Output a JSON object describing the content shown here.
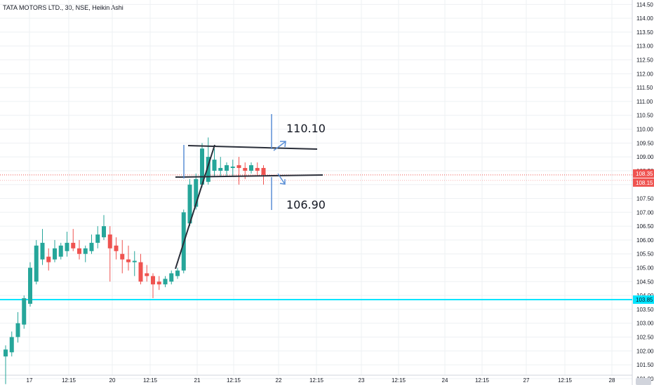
{
  "header": {
    "title": "TATA MOTORS LTD., 30, NSE, Heikin Ashi"
  },
  "colors": {
    "up": "#26a69a",
    "down": "#ef5350",
    "cyan_line": "#00e5ff",
    "annotation_blue": "#5b8fd6",
    "trendline": "#2a2e39",
    "grid": "#eef0f3",
    "axis_text": "#131722"
  },
  "chart_data": {
    "type": "candlestick",
    "style": "Heikin Ashi",
    "symbol": "TATA MOTORS LTD.",
    "interval": "30",
    "exchange": "NSE",
    "ylim": [
      100.77,
      114.66
    ],
    "y_ticks": [
      "101.00",
      "101.50",
      "102.00",
      "102.50",
      "103.00",
      "103.50",
      "104.00",
      "104.50",
      "105.00",
      "105.50",
      "106.00",
      "106.50",
      "107.00",
      "107.50",
      "108.00",
      "108.50",
      "109.00",
      "109.50",
      "110.00",
      "110.50",
      "111.00",
      "111.50",
      "112.00",
      "112.50",
      "113.00",
      "113.50",
      "114.00",
      "114.50"
    ],
    "x_ticks": [
      "17",
      "12:15",
      "20",
      "12:15",
      "21",
      "12:15",
      "22",
      "12:15",
      "23",
      "12:15",
      "24",
      "12:15",
      "27",
      "12:15",
      "28"
    ],
    "candles": [
      {
        "o": 101.8,
        "h": 102.2,
        "l": 100.8,
        "c": 102.05
      },
      {
        "o": 101.95,
        "h": 102.7,
        "l": 101.8,
        "c": 102.5
      },
      {
        "o": 102.5,
        "h": 103.4,
        "l": 102.3,
        "c": 103.0
      },
      {
        "o": 102.95,
        "h": 104.0,
        "l": 102.8,
        "c": 103.9
      },
      {
        "o": 103.7,
        "h": 105.2,
        "l": 103.6,
        "c": 105.0
      },
      {
        "o": 104.5,
        "h": 106.0,
        "l": 104.4,
        "c": 105.8
      },
      {
        "o": 105.3,
        "h": 106.4,
        "l": 105.1,
        "c": 105.9
      },
      {
        "o": 105.4,
        "h": 105.7,
        "l": 104.9,
        "c": 105.2
      },
      {
        "o": 105.3,
        "h": 106.0,
        "l": 105.2,
        "c": 105.7
      },
      {
        "o": 105.4,
        "h": 105.9,
        "l": 105.3,
        "c": 105.8
      },
      {
        "o": 105.6,
        "h": 106.3,
        "l": 105.4,
        "c": 105.9
      },
      {
        "o": 105.9,
        "h": 106.4,
        "l": 105.6,
        "c": 105.7
      },
      {
        "o": 105.7,
        "h": 106.0,
        "l": 105.3,
        "c": 105.5
      },
      {
        "o": 105.5,
        "h": 105.8,
        "l": 105.2,
        "c": 105.7
      },
      {
        "o": 105.6,
        "h": 106.2,
        "l": 105.5,
        "c": 105.9
      },
      {
        "o": 105.9,
        "h": 106.5,
        "l": 105.7,
        "c": 106.2
      },
      {
        "o": 106.1,
        "h": 106.9,
        "l": 106.0,
        "c": 106.5
      },
      {
        "o": 106.2,
        "h": 106.5,
        "l": 104.5,
        "c": 105.7
      },
      {
        "o": 105.8,
        "h": 106.1,
        "l": 105.3,
        "c": 105.6
      },
      {
        "o": 105.5,
        "h": 106.0,
        "l": 104.8,
        "c": 105.3
      },
      {
        "o": 105.3,
        "h": 105.8,
        "l": 104.9,
        "c": 105.2
      },
      {
        "o": 105.2,
        "h": 105.6,
        "l": 104.7,
        "c": 105.25
      },
      {
        "o": 105.2,
        "h": 105.5,
        "l": 104.4,
        "c": 104.5
      },
      {
        "o": 104.8,
        "h": 105.1,
        "l": 104.5,
        "c": 104.7
      },
      {
        "o": 104.7,
        "h": 104.8,
        "l": 103.9,
        "c": 104.4
      },
      {
        "o": 104.5,
        "h": 104.7,
        "l": 104.2,
        "c": 104.4
      },
      {
        "o": 104.4,
        "h": 104.7,
        "l": 104.3,
        "c": 104.6
      },
      {
        "o": 104.5,
        "h": 104.9,
        "l": 104.4,
        "c": 104.8
      },
      {
        "o": 104.7,
        "h": 105.0,
        "l": 104.6,
        "c": 104.9
      },
      {
        "o": 104.9,
        "h": 107.1,
        "l": 104.8,
        "c": 107.0
      },
      {
        "o": 106.6,
        "h": 108.2,
        "l": 106.5,
        "c": 108.0
      },
      {
        "o": 107.2,
        "h": 108.4,
        "l": 107.1,
        "c": 108.2
      },
      {
        "o": 108.0,
        "h": 109.5,
        "l": 107.9,
        "c": 109.3
      },
      {
        "o": 108.1,
        "h": 109.7,
        "l": 108.0,
        "c": 109.0
      },
      {
        "o": 108.5,
        "h": 109.3,
        "l": 108.3,
        "c": 108.9
      },
      {
        "o": 108.5,
        "h": 109.0,
        "l": 108.3,
        "c": 108.6
      },
      {
        "o": 108.5,
        "h": 108.8,
        "l": 108.3,
        "c": 108.7
      },
      {
        "o": 108.6,
        "h": 108.9,
        "l": 108.3,
        "c": 108.65
      },
      {
        "o": 108.7,
        "h": 109.0,
        "l": 108.0,
        "c": 108.6
      },
      {
        "o": 108.6,
        "h": 108.8,
        "l": 108.2,
        "c": 108.5
      },
      {
        "o": 108.5,
        "h": 108.8,
        "l": 108.4,
        "c": 108.7
      },
      {
        "o": 108.6,
        "h": 108.8,
        "l": 108.3,
        "c": 108.5
      },
      {
        "o": 108.6,
        "h": 108.7,
        "l": 108.0,
        "c": 108.35
      }
    ],
    "horizontal_lines": [
      {
        "price": 103.85,
        "label": "103.85",
        "color": "#00e5ff"
      }
    ],
    "price_labels": [
      {
        "label": "108.35"
      },
      {
        "label": "108.15"
      }
    ],
    "annotations": [
      {
        "text": "110.10"
      },
      {
        "text": "106.90"
      }
    ]
  }
}
